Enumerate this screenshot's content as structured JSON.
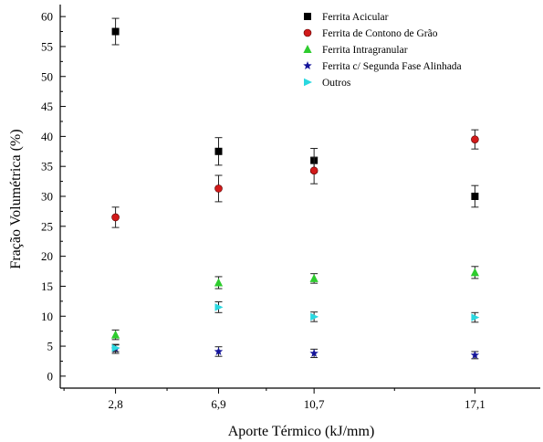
{
  "chart_data": {
    "type": "scatter",
    "xlabel": "Aporte Térmico (kJ/mm)",
    "ylabel": "Fração Volumétrica (%)",
    "ylim": [
      -2,
      62
    ],
    "xlim": [
      0.6,
      19.7
    ],
    "x_ticks": [
      2.8,
      6.9,
      10.7,
      17.1
    ],
    "x_tick_labels": [
      "2,8",
      "6,9",
      "10,7",
      "17,1"
    ],
    "y_ticks": [
      0,
      5,
      10,
      15,
      20,
      25,
      30,
      35,
      40,
      45,
      50,
      55,
      60
    ],
    "x": [
      2.8,
      6.9,
      10.7,
      17.1
    ],
    "grid": false,
    "legend_position": "top-right",
    "series": [
      {
        "name": "Ferrita Acicular",
        "marker": "square",
        "color": "#000000",
        "values": [
          57.5,
          37.5,
          36.0,
          30.0
        ],
        "errors": [
          2.2,
          2.3,
          2.0,
          1.8
        ]
      },
      {
        "name": "Ferrita de Contono de Grão",
        "marker": "circle",
        "color": "#d11a1a",
        "values": [
          26.5,
          31.3,
          34.3,
          39.5
        ],
        "errors": [
          1.7,
          2.2,
          2.2,
          1.6
        ]
      },
      {
        "name": "Ferrita Intragranular",
        "marker": "triangle-up",
        "color": "#2ecc2e",
        "values": [
          6.9,
          15.6,
          16.3,
          17.3
        ],
        "errors": [
          0.8,
          1.0,
          0.8,
          1.0
        ]
      },
      {
        "name": "Ferrita c/ Segunda Fase Alinhada",
        "marker": "star",
        "color": "#14149a",
        "values": [
          4.5,
          4.1,
          3.8,
          3.5
        ],
        "errors": [
          0.7,
          0.8,
          0.7,
          0.6
        ]
      },
      {
        "name": "Outros",
        "marker": "triangle-right",
        "color": "#2ad8e0",
        "values": [
          4.7,
          11.5,
          9.9,
          9.8
        ],
        "errors": [
          0.6,
          0.9,
          0.8,
          0.8
        ]
      }
    ]
  }
}
